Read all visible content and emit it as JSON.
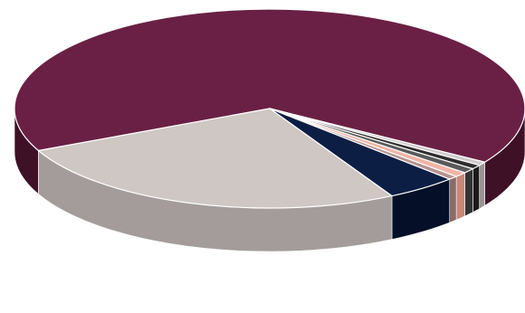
{
  "chart_data": {
    "type": "pie",
    "title": "",
    "legend": "none",
    "slices": [
      {
        "value": 66.0,
        "color": "#6A2044",
        "side_color": "#3E1127"
      },
      {
        "value": 0.6,
        "color": "#D0CACA",
        "side_color": "#9A9494"
      },
      {
        "value": 0.7,
        "color": "#2E2E2E",
        "side_color": "#1A1A1A"
      },
      {
        "value": 0.8,
        "color": "#5A5A5A",
        "side_color": "#333333"
      },
      {
        "value": 0.8,
        "color": "#F2B4A6",
        "side_color": "#C98878"
      },
      {
        "value": 0.6,
        "color": "#B49490",
        "side_color": "#8A6C68"
      },
      {
        "value": 4.5,
        "color": "#0D1E45",
        "side_color": "#050F28"
      },
      {
        "value": 26.0,
        "color": "#CFC7C4",
        "side_color": "#A39C9A"
      }
    ]
  }
}
